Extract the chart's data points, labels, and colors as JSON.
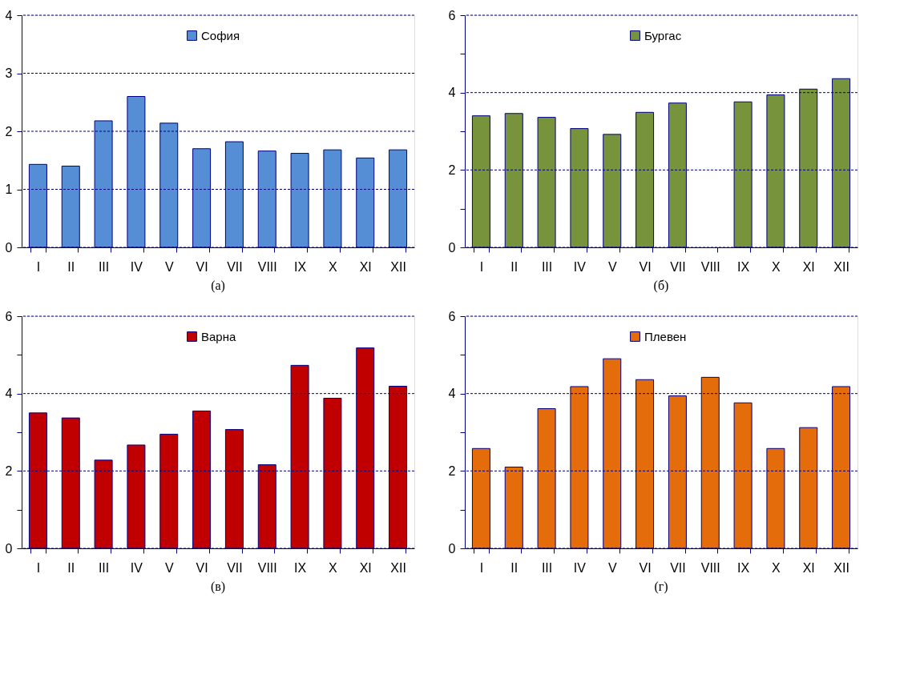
{
  "chart_data": [
    {
      "type": "bar",
      "categories": [
        "I",
        "II",
        "III",
        "IV",
        "V",
        "VI",
        "VII",
        "VIII",
        "IX",
        "X",
        "XI",
        "XII"
      ],
      "series": [
        {
          "name": "София",
          "color": "#558ed5",
          "values": [
            1.43,
            1.4,
            2.18,
            2.6,
            2.14,
            1.7,
            1.82,
            1.66,
            1.62,
            1.68,
            1.54,
            1.68
          ]
        }
      ],
      "ylim": [
        0,
        4
      ],
      "yticks": [
        0,
        1,
        2,
        3,
        4
      ],
      "grid": "y",
      "legend": "top",
      "annotations": [
        "(а)"
      ]
    },
    {
      "type": "bar",
      "categories": [
        "I",
        "II",
        "III",
        "IV",
        "V",
        "VI",
        "VII",
        "VIII",
        "IX",
        "X",
        "XI",
        "XII"
      ],
      "series": [
        {
          "name": "Бургас",
          "color": "#77933c",
          "values": [
            3.4,
            3.46,
            3.36,
            3.07,
            2.92,
            3.49,
            3.73,
            null,
            3.76,
            3.94,
            4.09,
            4.36
          ]
        }
      ],
      "ylim": [
        0,
        6
      ],
      "yticks": [
        0,
        {
          "value": 1,
          "label": null
        },
        2,
        {
          "value": 3,
          "label": null
        },
        4,
        {
          "value": 5,
          "label": null
        },
        6
      ],
      "grid": "y",
      "legend": "top",
      "annotations": [
        "(б)"
      ]
    },
    {
      "type": "bar",
      "categories": [
        "I",
        "II",
        "III",
        "IV",
        "V",
        "VI",
        "VII",
        "VIII",
        "IX",
        "X",
        "XI",
        "XII"
      ],
      "series": [
        {
          "name": "Варна",
          "color": "#c00000",
          "values": [
            3.5,
            3.37,
            2.28,
            2.67,
            2.95,
            3.55,
            3.07,
            2.16,
            4.73,
            3.88,
            5.18,
            4.19
          ]
        }
      ],
      "ylim": [
        0,
        6
      ],
      "yticks": [
        0,
        {
          "value": 1,
          "label": null
        },
        2,
        {
          "value": 3,
          "label": null
        },
        4,
        {
          "value": 5,
          "label": null
        },
        6
      ],
      "grid": "y",
      "legend": "top",
      "annotations": [
        "(в)"
      ]
    },
    {
      "type": "bar",
      "categories": [
        "I",
        "II",
        "III",
        "IV",
        "V",
        "VI",
        "VII",
        "VIII",
        "IX",
        "X",
        "XI",
        "XII"
      ],
      "series": [
        {
          "name": "Плевен",
          "color": "#e46c0a",
          "values": [
            2.58,
            2.1,
            3.61,
            4.18,
            4.9,
            4.36,
            3.94,
            4.42,
            3.76,
            2.58,
            3.12,
            4.18
          ]
        }
      ],
      "ylim": [
        0,
        6
      ],
      "yticks": [
        0,
        {
          "value": 1,
          "label": null
        },
        2,
        {
          "value": 3,
          "label": null
        },
        4,
        {
          "value": 5,
          "label": null
        },
        6
      ],
      "grid": "y",
      "legend": "top",
      "annotations": [
        "(г)"
      ]
    }
  ]
}
